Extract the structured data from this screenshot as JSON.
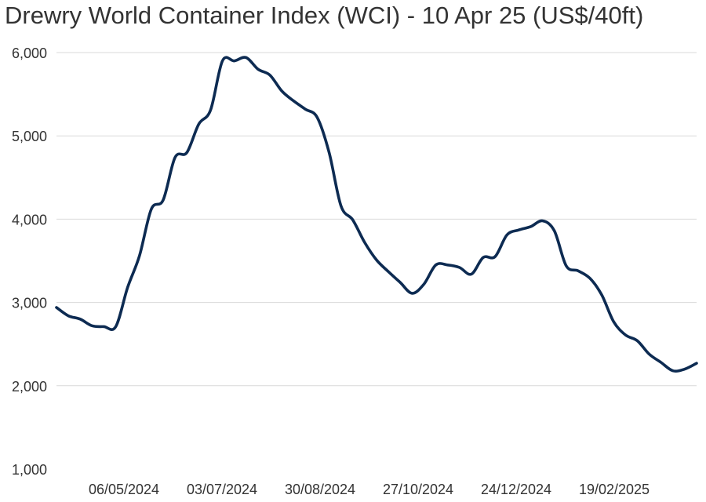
{
  "chart_data": {
    "type": "line",
    "title": "Drewry World Container Index (WCI) - 10 Apr 25 (US$/40ft)",
    "xlabel": "",
    "ylabel": "",
    "ylim": [
      1000,
      6000
    ],
    "yticks": [
      1000,
      2000,
      3000,
      4000,
      5000,
      6000
    ],
    "ytick_labels": [
      "1,000",
      "2,000",
      "3,000",
      "4,000",
      "5,000",
      "6,000"
    ],
    "xtick_labels": [
      "06/05/2024",
      "03/07/2024",
      "30/08/2024",
      "27/10/2024",
      "24/12/2024",
      "19/02/2025"
    ],
    "grid": true,
    "legend": "none",
    "line_color": "#0d2b52",
    "series": [
      {
        "name": "WCI",
        "values": [
          2940,
          2840,
          2800,
          2720,
          2710,
          2710,
          3180,
          3560,
          4120,
          4230,
          4740,
          4800,
          5140,
          5310,
          5900,
          5900,
          5940,
          5800,
          5730,
          5540,
          5420,
          5320,
          5220,
          4800,
          4160,
          3990,
          3720,
          3510,
          3370,
          3240,
          3110,
          3220,
          3450,
          3450,
          3420,
          3340,
          3540,
          3550,
          3810,
          3870,
          3910,
          3980,
          3860,
          3440,
          3380,
          3290,
          3090,
          2770,
          2610,
          2540,
          2380,
          2280,
          2180,
          2200,
          2270
        ]
      }
    ]
  }
}
